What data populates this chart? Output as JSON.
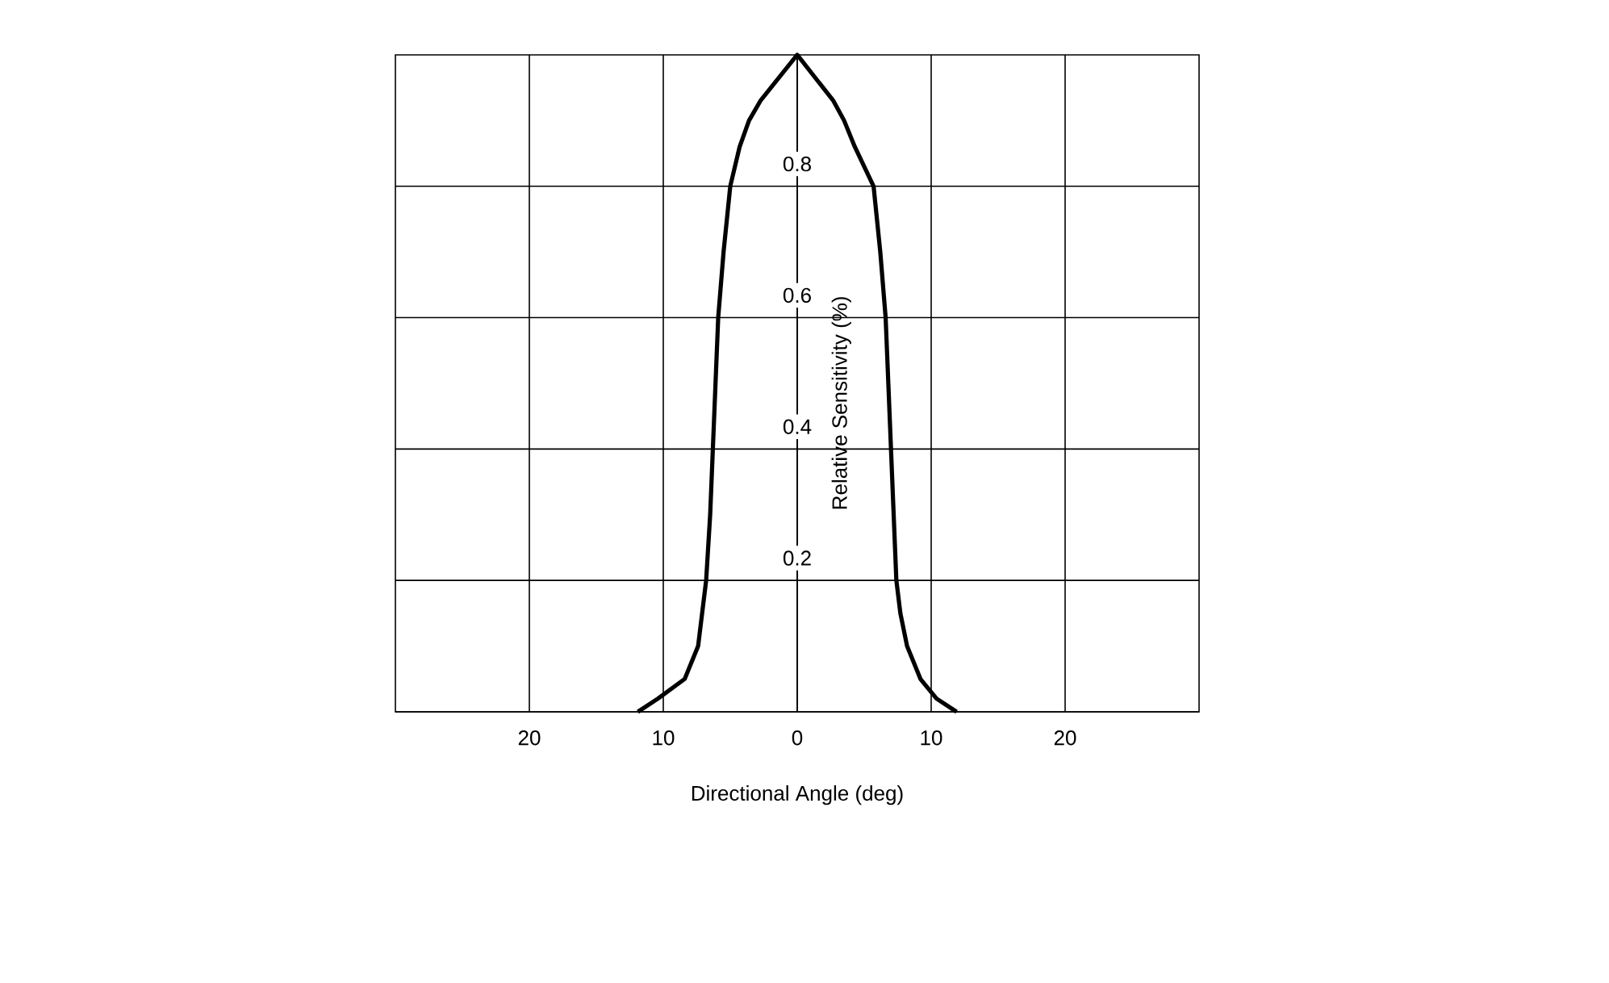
{
  "chart_data": {
    "type": "line",
    "xlabel": "Directional Angle (deg)",
    "ylabel": "Relative Sensitivity (%)",
    "x": [
      -11.9,
      -10.4,
      -8.4,
      -7.4,
      -7.1,
      -6.8,
      -6.5,
      -6.3,
      -6.1,
      -5.9,
      -5.5,
      -5.0,
      -4.3,
      -3.6,
      -2.75,
      0,
      2.7,
      3.5,
      4.3,
      5.7,
      6.2,
      6.6,
      6.8,
      7.0,
      7.2,
      7.4,
      7.7,
      8.2,
      9.2,
      10.4,
      11.9
    ],
    "values": [
      0,
      0.02,
      0.05,
      0.1,
      0.15,
      0.2,
      0.3,
      0.4,
      0.5,
      0.6,
      0.7,
      0.8,
      0.86,
      0.9,
      0.93,
      1.0,
      0.93,
      0.9,
      0.86,
      0.8,
      0.7,
      0.6,
      0.5,
      0.4,
      0.3,
      0.2,
      0.15,
      0.1,
      0.05,
      0.02,
      0
    ],
    "color": "#000000",
    "marker": "none",
    "line_style": "solid",
    "xlim": [
      -30,
      30
    ],
    "ylim": [
      0,
      1
    ],
    "xticks": [
      {
        "value": -20,
        "label": "20"
      },
      {
        "value": -10,
        "label": "10"
      },
      0,
      10,
      20
    ],
    "yticks": [
      0.2,
      0.4,
      0.6,
      0.8
    ],
    "grid": true
  }
}
